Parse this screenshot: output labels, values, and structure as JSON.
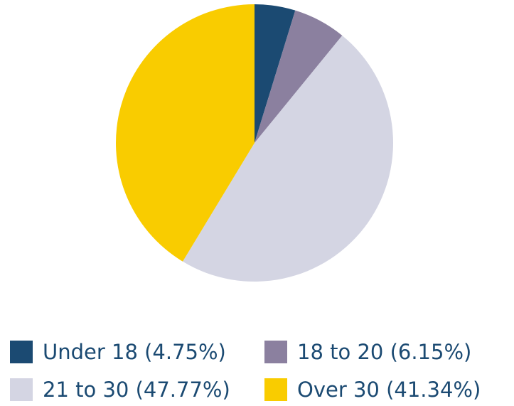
{
  "chart_data": {
    "type": "pie",
    "categories": [
      "Under 18 (4.75%)",
      "18 to 20 (6.15%)",
      "21 to 30 (47.77%)",
      "Over 30 (41.34%)"
    ],
    "values": [
      4.75,
      6.15,
      47.77,
      41.34
    ],
    "colors": [
      "#1b4a72",
      "#8b809f",
      "#d4d5e3",
      "#f9cc00"
    ],
    "legend": "bottom"
  }
}
